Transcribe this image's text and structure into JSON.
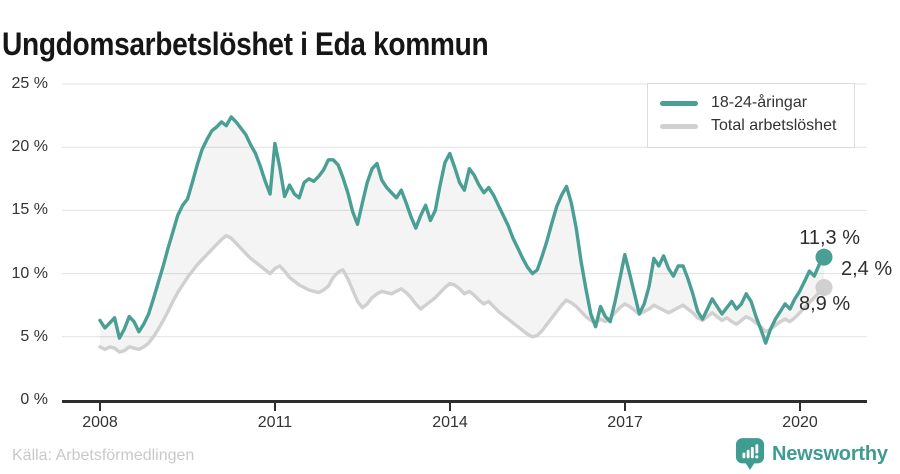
{
  "title": "Ungdomsarbetslöshet i Eda kommun",
  "source": "Källa: Arbetsförmedlingen",
  "branding": {
    "name": "Newsworthy",
    "color": "#3e9c90",
    "icon": "newsworthy-pin-barchart-icon"
  },
  "annotations": {
    "youth_latest": "11,3 %",
    "difference": "2,4 %",
    "total_latest": "8,9 %"
  },
  "chart_data": {
    "type": "line",
    "title": "Ungdomsarbetslöshet i Eda kommun",
    "frequency": "monthly",
    "x_start": "2008-01",
    "x_end": "2020-06",
    "ylim": [
      0,
      25
    ],
    "grid": true,
    "legend_position": "top-right",
    "x_ticks": [
      2008,
      2011,
      2014,
      2017,
      2020
    ],
    "x_tick_labels": [
      "2008",
      "2011",
      "2014",
      "2017",
      "2020"
    ],
    "y_ticks": [
      0,
      5,
      10,
      15,
      20,
      25
    ],
    "y_tick_labels": [
      "0 %",
      "5 %",
      "10 %",
      "15 %",
      "20 %",
      "25 %"
    ],
    "series": [
      {
        "name": "18-24-åringar",
        "color": "#4a9f94",
        "last_value_label": "11,3 %",
        "values": [
          6.3,
          5.7,
          6.1,
          6.5,
          4.9,
          5.6,
          6.6,
          6.2,
          5.4,
          6.0,
          6.8,
          8.0,
          9.3,
          10.6,
          12.0,
          13.3,
          14.6,
          15.4,
          15.9,
          17.2,
          18.6,
          19.8,
          20.6,
          21.3,
          21.6,
          22.0,
          21.7,
          22.4,
          22.0,
          21.5,
          21.0,
          20.2,
          19.5,
          18.5,
          17.3,
          16.3,
          20.3,
          18.4,
          16.1,
          17.0,
          16.3,
          16.0,
          17.2,
          17.5,
          17.3,
          17.7,
          18.2,
          19.0,
          19.0,
          18.6,
          17.6,
          16.4,
          14.9,
          13.9,
          15.6,
          17.2,
          18.3,
          18.7,
          17.4,
          16.8,
          16.4,
          16.0,
          16.6,
          15.6,
          14.5,
          13.6,
          14.6,
          15.4,
          14.2,
          15.0,
          17.0,
          18.8,
          19.5,
          18.4,
          17.2,
          16.6,
          18.3,
          17.8,
          17.0,
          16.4,
          16.8,
          16.2,
          15.4,
          14.6,
          13.8,
          12.8,
          12.0,
          11.2,
          10.5,
          10.0,
          10.3,
          11.4,
          12.6,
          14.0,
          15.3,
          16.2,
          16.9,
          15.6,
          13.6,
          11.0,
          8.8,
          6.8,
          5.8,
          7.4,
          6.6,
          6.2,
          7.8,
          9.6,
          11.5,
          10.0,
          8.4,
          6.8,
          7.6,
          9.0,
          11.2,
          10.6,
          11.4,
          10.4,
          9.8,
          10.6,
          10.6,
          9.6,
          8.4,
          7.0,
          6.4,
          7.2,
          8.0,
          7.4,
          6.8,
          7.3,
          7.8,
          7.2,
          7.6,
          8.4,
          7.8,
          6.6,
          5.6,
          4.5,
          5.6,
          6.4,
          7.0,
          7.6,
          7.2,
          8.0,
          8.6,
          9.4,
          10.2,
          9.8,
          10.7,
          11.3
        ]
      },
      {
        "name": "Total arbetslöshet",
        "color": "#d0d0d0",
        "last_value_label": "8,9 %",
        "values": [
          4.2,
          4.0,
          4.2,
          4.1,
          3.8,
          3.9,
          4.2,
          4.1,
          4.0,
          4.2,
          4.5,
          5.0,
          5.6,
          6.3,
          7.0,
          7.8,
          8.5,
          9.1,
          9.7,
          10.2,
          10.7,
          11.1,
          11.5,
          11.9,
          12.3,
          12.7,
          13.0,
          12.8,
          12.4,
          12.0,
          11.6,
          11.2,
          10.9,
          10.6,
          10.3,
          10.0,
          10.4,
          10.6,
          10.2,
          9.7,
          9.4,
          9.1,
          8.9,
          8.7,
          8.6,
          8.5,
          8.7,
          9.0,
          9.7,
          10.1,
          10.3,
          9.6,
          8.7,
          7.8,
          7.3,
          7.6,
          8.1,
          8.4,
          8.6,
          8.5,
          8.4,
          8.6,
          8.8,
          8.5,
          8.1,
          7.6,
          7.2,
          7.5,
          7.8,
          8.1,
          8.5,
          8.9,
          9.2,
          9.1,
          8.8,
          8.4,
          8.6,
          8.3,
          7.9,
          7.6,
          7.8,
          7.4,
          7.0,
          6.7,
          6.4,
          6.1,
          5.8,
          5.5,
          5.2,
          5.0,
          5.1,
          5.5,
          6.0,
          6.5,
          7.0,
          7.5,
          7.9,
          7.7,
          7.4,
          7.0,
          6.6,
          6.3,
          6.1,
          6.4,
          6.2,
          6.5,
          6.9,
          7.3,
          7.6,
          7.4,
          7.1,
          6.8,
          7.0,
          7.2,
          7.5,
          7.3,
          7.1,
          6.9,
          7.1,
          7.3,
          7.5,
          7.2,
          6.9,
          6.5,
          6.3,
          6.6,
          6.9,
          6.6,
          6.3,
          6.5,
          6.2,
          6.0,
          6.3,
          6.6,
          6.4,
          6.1,
          5.8,
          5.4,
          5.6,
          5.9,
          6.2,
          6.4,
          6.2,
          6.5,
          6.9,
          7.3,
          7.7,
          8.1,
          8.5,
          8.9
        ]
      }
    ],
    "difference_label": "2,4 %"
  }
}
